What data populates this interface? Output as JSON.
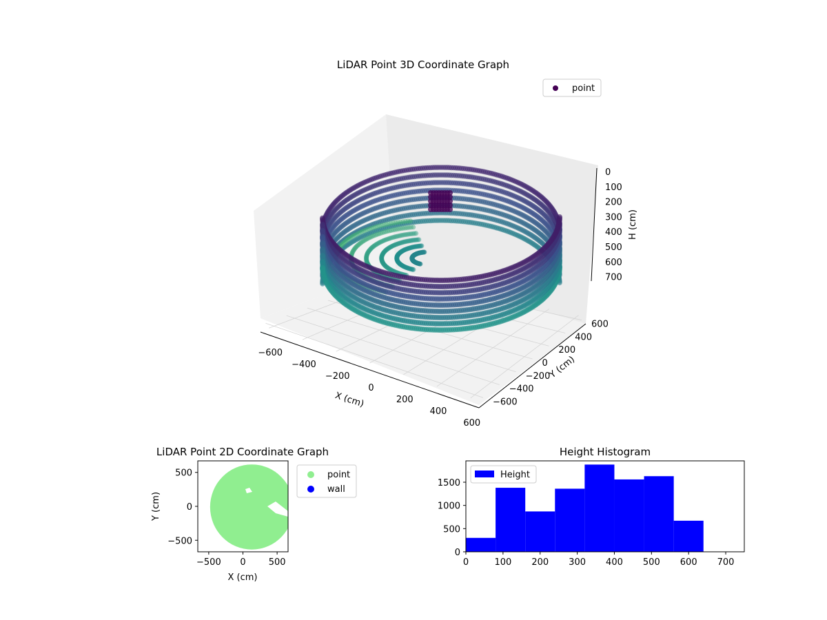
{
  "chart_data": [
    {
      "type": "scatter3d",
      "title": "LiDAR Point 3D Coordinate Graph",
      "xlabel": "X (cm)",
      "ylabel": "Y (cm)",
      "zlabel": "H (cm)",
      "xticks": [
        "−600",
        "−400",
        "−200",
        "0",
        "200",
        "400",
        "600"
      ],
      "yticks": [
        "−600",
        "−400",
        "−200",
        "0",
        "200",
        "400",
        "600"
      ],
      "zticks": [
        "0",
        "100",
        "200",
        "300",
        "400",
        "500",
        "600",
        "700"
      ],
      "xlim": [
        -650,
        650
      ],
      "ylim": [
        -650,
        650
      ],
      "zlim": [
        0,
        750
      ],
      "zinverted": true,
      "colormap": "viridis",
      "legend": {
        "label": "point",
        "placement": "upper right"
      },
      "series": [
        {
          "name": "point",
          "description_radius_cm": 600,
          "height_range_cm": [
            0,
            700
          ]
        }
      ]
    },
    {
      "type": "scatter",
      "title": "LiDAR Point 2D Coordinate Graph",
      "xlabel": "X (cm)",
      "ylabel": "Y (cm)",
      "xticks": [
        "−500",
        "0",
        "500"
      ],
      "yticks": [
        "500",
        "0",
        "−500"
      ],
      "xlim": [
        -660,
        660
      ],
      "ylim": [
        -670,
        670
      ],
      "legend": {
        "placement": "outside right",
        "entries": [
          {
            "label": "point",
            "color": "#90ee90"
          },
          {
            "label": "wall",
            "color": "#0000ff"
          }
        ]
      },
      "series": [
        {
          "name": "point",
          "color": "#90ee90",
          "center": [
            130,
            -10
          ],
          "radius": 610
        },
        {
          "name": "wall",
          "color": "#0000ff",
          "points": []
        }
      ]
    },
    {
      "type": "bar",
      "title": "Height Histogram",
      "legend": {
        "label": "Height",
        "color": "#0000ff",
        "placement": "upper left"
      },
      "xticks": [
        "0",
        "100",
        "200",
        "300",
        "400",
        "500",
        "600",
        "700"
      ],
      "yticks": [
        "0",
        "500",
        "1000",
        "1500"
      ],
      "xlim": [
        0,
        750
      ],
      "ylim": [
        0,
        1960
      ],
      "bins": [
        {
          "x0": 0,
          "x1": 80,
          "count": 300
        },
        {
          "x0": 80,
          "x1": 160,
          "count": 1380
        },
        {
          "x0": 160,
          "x1": 240,
          "count": 870
        },
        {
          "x0": 240,
          "x1": 320,
          "count": 1360
        },
        {
          "x0": 320,
          "x1": 400,
          "count": 1880
        },
        {
          "x0": 400,
          "x1": 480,
          "count": 1560
        },
        {
          "x0": 480,
          "x1": 560,
          "count": 1630
        },
        {
          "x0": 560,
          "x1": 640,
          "count": 670
        }
      ]
    }
  ]
}
